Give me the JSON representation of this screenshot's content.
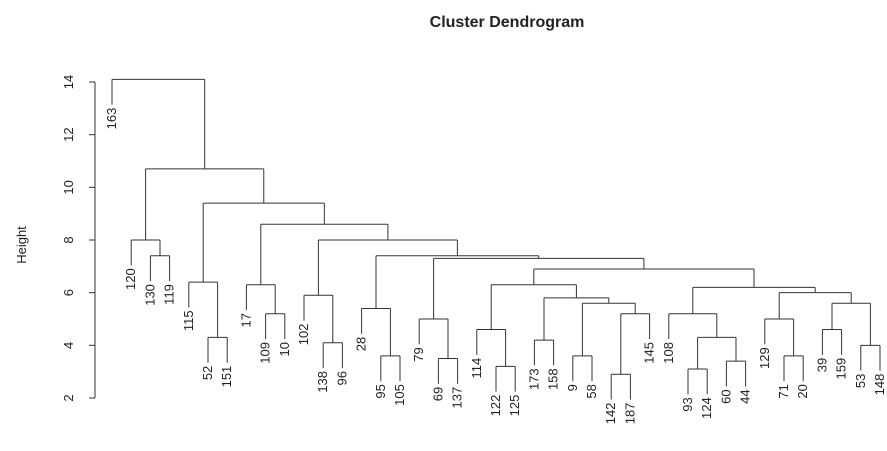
{
  "chart_data": {
    "type": "dendrogram",
    "title": "Cluster Dendrogram",
    "y_label": "Height",
    "ylim": [
      2,
      14
    ],
    "yticks": [
      2,
      4,
      6,
      8,
      10,
      12,
      14
    ],
    "color": "#333333",
    "tree": {
      "height": 14.1,
      "children": [
        {
          "label": "163"
        },
        {
          "height": 10.7,
          "children": [
            {
              "height": 8.0,
              "children": [
                {
                  "label": "120"
                },
                {
                  "height": 7.4,
                  "children": [
                    {
                      "label": "130"
                    },
                    {
                      "label": "119"
                    }
                  ]
                }
              ]
            },
            {
              "height": 9.4,
              "children": [
                {
                  "height": 6.4,
                  "children": [
                    {
                      "label": "115"
                    },
                    {
                      "height": 4.3,
                      "children": [
                        {
                          "label": "52"
                        },
                        {
                          "label": "151"
                        }
                      ]
                    }
                  ]
                },
                {
                  "height": 8.6,
                  "children": [
                    {
                      "height": 6.3,
                      "children": [
                        {
                          "label": "17"
                        },
                        {
                          "height": 5.2,
                          "children": [
                            {
                              "label": "109"
                            },
                            {
                              "label": "10"
                            }
                          ]
                        }
                      ]
                    },
                    {
                      "height": 8.0,
                      "children": [
                        {
                          "height": 5.9,
                          "children": [
                            {
                              "label": "102"
                            },
                            {
                              "height": 4.1,
                              "children": [
                                {
                                  "label": "138"
                                },
                                {
                                  "label": "96"
                                }
                              ]
                            }
                          ]
                        },
                        {
                          "height": 7.4,
                          "children": [
                            {
                              "height": 5.4,
                              "children": [
                                {
                                  "label": "28"
                                },
                                {
                                  "height": 3.6,
                                  "children": [
                                    {
                                      "label": "95"
                                    },
                                    {
                                      "label": "105"
                                    }
                                  ]
                                }
                              ]
                            },
                            {
                              "height": 7.3,
                              "children": [
                                {
                                  "height": 5.0,
                                  "children": [
                                    {
                                      "label": "79"
                                    },
                                    {
                                      "height": 3.5,
                                      "children": [
                                        {
                                          "label": "69"
                                        },
                                        {
                                          "label": "137"
                                        }
                                      ]
                                    }
                                  ]
                                },
                                {
                                  "height": 6.9,
                                  "children": [
                                    {
                                      "height": 6.3,
                                      "children": [
                                        {
                                          "height": 4.6,
                                          "children": [
                                            {
                                              "label": "114"
                                            },
                                            {
                                              "height": 3.2,
                                              "children": [
                                                {
                                                  "label": "122"
                                                },
                                                {
                                                  "label": "125"
                                                }
                                              ]
                                            }
                                          ]
                                        },
                                        {
                                          "height": 5.8,
                                          "children": [
                                            {
                                              "height": 4.2,
                                              "children": [
                                                {
                                                  "label": "173"
                                                },
                                                {
                                                  "label": "158"
                                                }
                                              ]
                                            },
                                            {
                                              "height": 5.6,
                                              "children": [
                                                {
                                                  "height": 3.6,
                                                  "children": [
                                                    {
                                                      "label": "9"
                                                    },
                                                    {
                                                      "label": "58"
                                                    }
                                                  ]
                                                },
                                                {
                                                  "height": 5.2,
                                                  "children": [
                                                    {
                                                      "height": 2.9,
                                                      "children": [
                                                        {
                                                          "label": "142"
                                                        },
                                                        {
                                                          "label": "187"
                                                        }
                                                      ]
                                                    },
                                                    {
                                                      "label": "145"
                                                    }
                                                  ]
                                                }
                                              ]
                                            }
                                          ]
                                        }
                                      ]
                                    },
                                    {
                                      "height": 6.2,
                                      "children": [
                                        {
                                          "height": 5.2,
                                          "children": [
                                            {
                                              "label": "108"
                                            },
                                            {
                                              "height": 4.3,
                                              "children": [
                                                {
                                                  "height": 3.1,
                                                  "children": [
                                                    {
                                                      "label": "93"
                                                    },
                                                    {
                                                      "label": "124"
                                                    }
                                                  ]
                                                },
                                                {
                                                  "height": 3.4,
                                                  "children": [
                                                    {
                                                      "label": "60"
                                                    },
                                                    {
                                                      "label": "44"
                                                    }
                                                  ]
                                                }
                                              ]
                                            }
                                          ]
                                        },
                                        {
                                          "height": 6.0,
                                          "children": [
                                            {
                                              "height": 5.0,
                                              "children": [
                                                {
                                                  "label": "129"
                                                },
                                                {
                                                  "height": 3.6,
                                                  "children": [
                                                    {
                                                      "label": "71"
                                                    },
                                                    {
                                                      "label": "20"
                                                    }
                                                  ]
                                                }
                                              ]
                                            },
                                            {
                                              "height": 5.6,
                                              "children": [
                                                {
                                                  "height": 4.6,
                                                  "children": [
                                                    {
                                                      "label": "39"
                                                    },
                                                    {
                                                      "label": "159"
                                                    }
                                                  ]
                                                },
                                                {
                                                  "height": 4.0,
                                                  "children": [
                                                    {
                                                      "label": "53"
                                                    },
                                                    {
                                                      "label": "148"
                                                    }
                                                  ]
                                                }
                                              ]
                                            }
                                          ]
                                        }
                                      ]
                                    }
                                  ]
                                }
                              ]
                            }
                          ]
                        }
                      ]
                    }
                  ]
                }
              ]
            }
          ]
        }
      ]
    }
  }
}
